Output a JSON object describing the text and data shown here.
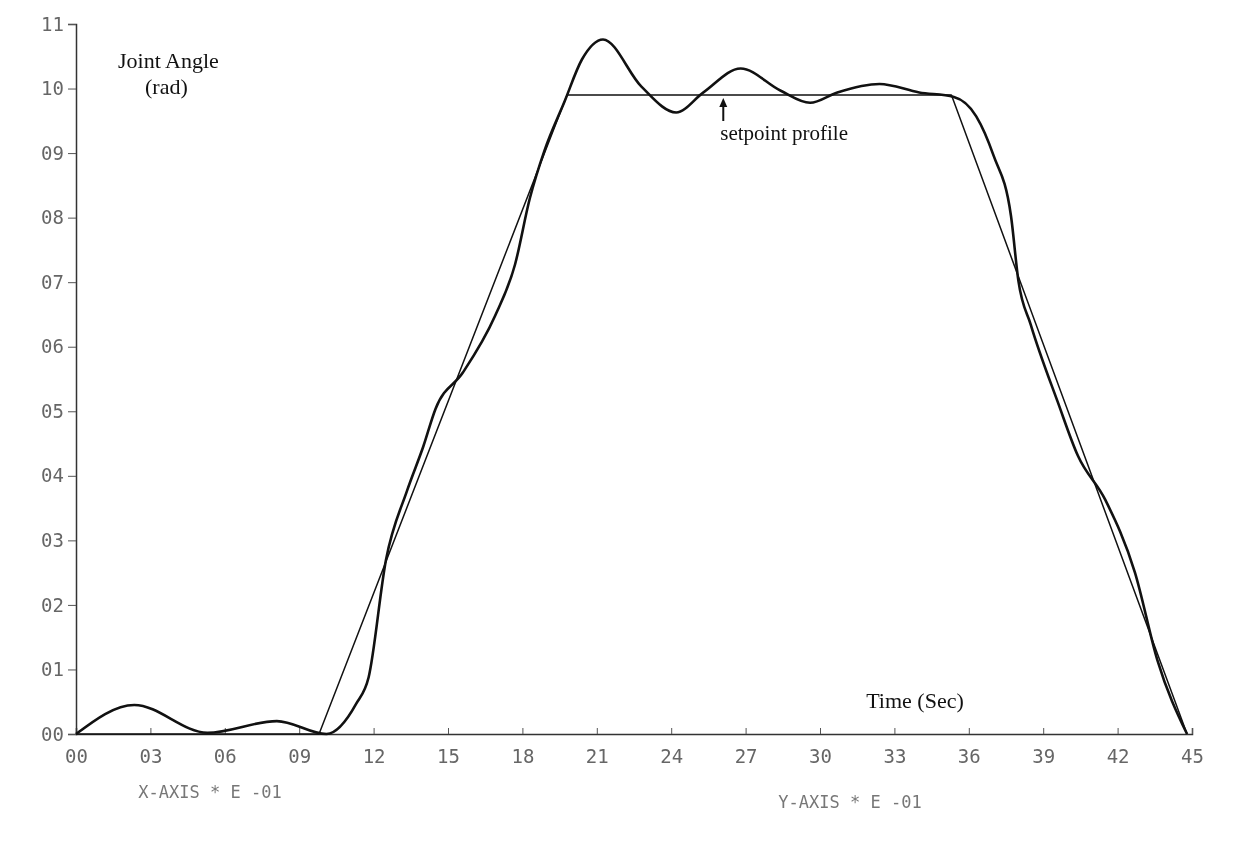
{
  "chart_data": {
    "type": "line",
    "xlabel": "Time (Sec)",
    "ylabel": "Joint Angle (rad)",
    "xlim": [
      0,
      45
    ],
    "ylim": [
      0,
      11
    ],
    "xticks": [
      {
        "value": 0,
        "label": "00"
      },
      {
        "value": 3,
        "label": "03"
      },
      {
        "value": 6,
        "label": "06"
      },
      {
        "value": 9,
        "label": "09"
      },
      12,
      15,
      18,
      21,
      24,
      27,
      30,
      33,
      36,
      39,
      42,
      45
    ],
    "yticks": [
      {
        "value": 0,
        "label": "00"
      },
      {
        "value": 1,
        "label": "01"
      },
      {
        "value": 2,
        "label": "02"
      },
      {
        "value": 3,
        "label": "03"
      },
      {
        "value": 4,
        "label": "04"
      },
      {
        "value": 5,
        "label": "05"
      },
      {
        "value": 6,
        "label": "06"
      },
      {
        "value": 7,
        "label": "07"
      },
      {
        "value": 8,
        "label": "08"
      },
      {
        "value": 9,
        "label": "09"
      },
      10,
      11
    ],
    "grid": false,
    "marker": "none",
    "line_style": "solid",
    "series": [
      {
        "color": "#111111",
        "x": [
          0,
          9.8,
          19.8,
          35.3,
          44.8
        ],
        "values": [
          0,
          0,
          9.9,
          9.9,
          0
        ]
      },
      {
        "color": "#111111",
        "x": [
          0,
          2.35,
          5.3,
          8.1,
          10.1,
          11.3,
          11.8,
          12.5,
          13.35,
          14.0,
          14.5,
          15.6,
          16.9,
          17.7,
          18.3,
          18.9,
          19.7,
          20.4,
          21.25,
          22.8,
          24.2,
          25.3,
          26.8,
          28.4,
          29.6,
          30.7,
          32.4,
          34.0,
          35.4,
          36.3,
          37.0,
          37.7,
          38.0,
          38.5,
          39.6,
          40.4,
          41.5,
          42.7,
          43.6,
          44.8
        ],
        "values": [
          0,
          0.45,
          0.02,
          0.2,
          0,
          0.47,
          0.88,
          2.7,
          3.77,
          4.45,
          5.04,
          5.6,
          6.48,
          7.27,
          8.3,
          9.05,
          9.8,
          10.45,
          10.76,
          10.03,
          9.63,
          9.94,
          10.31,
          9.97,
          9.78,
          9.94,
          10.07,
          9.94,
          9.87,
          9.57,
          8.96,
          8.03,
          7.02,
          6.34,
          5.13,
          4.31,
          3.63,
          2.5,
          1.15,
          0
        ]
      }
    ],
    "annotations": [
      {
        "text": "setpoint profile",
        "x": 26.1,
        "y": 9.9
      },
      "X-AXIS * E -01",
      "Y-AXIS * E -01"
    ]
  }
}
